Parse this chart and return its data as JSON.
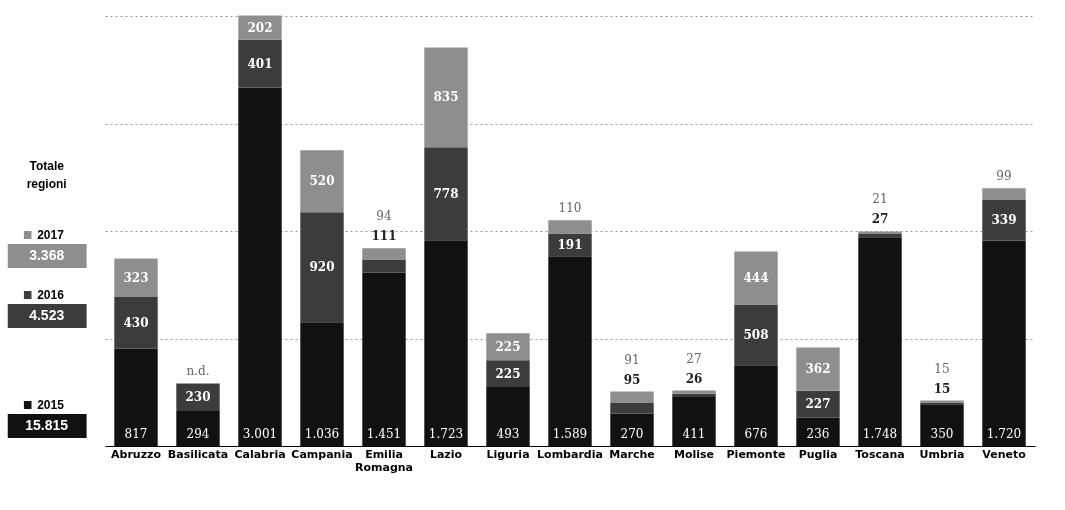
{
  "chart_data": {
    "type": "bar",
    "stacked": true,
    "legend_title": "Totale regioni",
    "legend": "left",
    "categories": [
      "Abruzzo",
      "Basilicata",
      "Calabria",
      "Campania",
      "Emilia Romagna",
      "Lazio",
      "Liguria",
      "Lombardia",
      "Marche",
      "Molise",
      "Piemonte",
      "Puglia",
      "Toscana",
      "Umbria",
      "Veneto"
    ],
    "series": [
      {
        "name": "2015",
        "color": "#111111",
        "values": [
          817,
          294,
          3001,
          1036,
          1451,
          1723,
          493,
          1589,
          270,
          411,
          676,
          236,
          1748,
          350,
          1720
        ],
        "value_labels": [
          "817",
          "294",
          "3.001",
          "1.036",
          "1.451",
          "1.723",
          "493",
          "1.589",
          "270",
          "411",
          "676",
          "236",
          "1.748",
          "350",
          "1.720"
        ]
      },
      {
        "name": "2016",
        "color": "#3c3c3c",
        "values": [
          430,
          230,
          401,
          920,
          111,
          778,
          225,
          191,
          95,
          26,
          508,
          227,
          27,
          15,
          339
        ],
        "value_labels": [
          "430",
          "230",
          "401",
          "920",
          "111",
          "778",
          "225",
          "191",
          "95",
          "26",
          "508",
          "227",
          "27",
          "15",
          "339"
        ]
      },
      {
        "name": "2017",
        "color": "#8e8e8e",
        "values": [
          323,
          null,
          202,
          520,
          94,
          835,
          225,
          110,
          91,
          27,
          444,
          362,
          21,
          15,
          99
        ],
        "value_labels": [
          "323",
          "n.d.",
          "202",
          "520",
          "94",
          "835",
          "225",
          "110",
          "91",
          "27",
          "444",
          "362",
          "21",
          "15",
          "99"
        ]
      }
    ],
    "annotations": [
      "15.815",
      "4.523",
      "3.368"
    ],
    "ylim": [
      0,
      3600
    ],
    "yticks": [
      {
        "value": 900,
        "label": null
      },
      {
        "value": 1800,
        "label": null
      },
      {
        "value": 2700,
        "label": null
      },
      {
        "value": 3600,
        "label": null
      }
    ],
    "grid": "y",
    "tick_labels": "x"
  }
}
